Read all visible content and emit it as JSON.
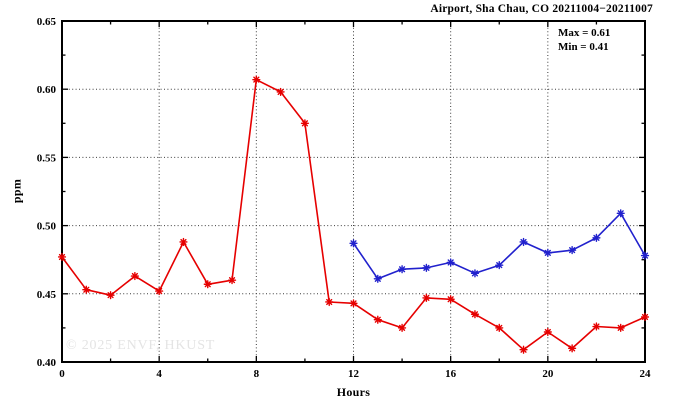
{
  "title": "Airport, Sha Chau, CO 20211004−20211007",
  "annotation": {
    "max_label": "Max = 0.61",
    "min_label": "Min = 0.41",
    "max_value": 0.61,
    "min_value": 0.41
  },
  "watermark": "© 2025 ENVF, HKUST",
  "chart_data": {
    "type": "line",
    "title": "Airport, Sha Chau, CO 20211004−20211007",
    "xlabel": "Hours",
    "ylabel": "ppm",
    "xlim": [
      0,
      24
    ],
    "ylim": [
      0.4,
      0.65
    ],
    "x_major_ticks": [
      0,
      4,
      8,
      12,
      16,
      20,
      24
    ],
    "x_minor_ticks": [
      2,
      6,
      10,
      14,
      18,
      22
    ],
    "y_major_ticks": [
      0.4,
      0.45,
      0.5,
      0.55,
      0.6,
      0.65
    ],
    "y_minor_ticks": [
      0.425,
      0.475,
      0.525,
      0.575,
      0.625
    ],
    "grid": "dotted lines at major ticks",
    "legend": "none",
    "marker": "asterisk",
    "series": [
      {
        "name": "red",
        "color": "#e60000",
        "x": [
          0,
          1,
          2,
          3,
          4,
          5,
          6,
          7,
          8,
          9,
          10,
          11,
          12,
          13,
          14,
          15,
          16,
          17,
          18,
          19,
          20,
          21,
          22,
          23,
          24
        ],
        "values": [
          0.477,
          0.453,
          0.449,
          0.463,
          0.452,
          0.488,
          0.457,
          0.46,
          0.607,
          0.598,
          0.575,
          0.444,
          0.443,
          0.431,
          0.425,
          0.447,
          0.446,
          0.435,
          0.425,
          0.409,
          0.422,
          0.41,
          0.426,
          0.425,
          0.433
        ]
      },
      {
        "name": "blue",
        "color": "#2121cd",
        "x": [
          12,
          13,
          14,
          15,
          16,
          17,
          18,
          19,
          20,
          21,
          22,
          23,
          24
        ],
        "values": [
          0.487,
          0.461,
          0.468,
          0.469,
          0.473,
          0.465,
          0.471,
          0.488,
          0.48,
          0.482,
          0.491,
          0.509,
          0.478
        ]
      }
    ]
  }
}
